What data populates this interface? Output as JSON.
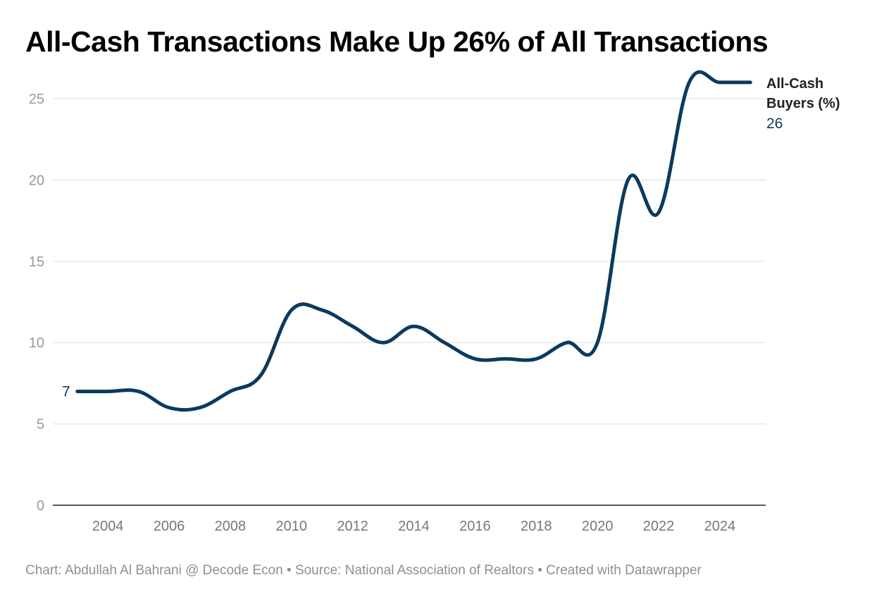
{
  "chart_data": {
    "type": "line",
    "title": "All-Cash Transactions Make Up 26% of All Transactions",
    "xlabel": "",
    "ylabel": "",
    "xlim": [
      2002.2,
      2025.5
    ],
    "ylim": [
      0,
      25
    ],
    "grid": true,
    "x_ticks": [
      2004,
      2006,
      2008,
      2010,
      2012,
      2014,
      2016,
      2018,
      2020,
      2022,
      2024
    ],
    "y_ticks": [
      0,
      5,
      10,
      15,
      20,
      25
    ],
    "color": "#0b3a5e",
    "series": [
      {
        "name_line1": "All-Cash",
        "name_line2": "Buyers (%)",
        "x": [
          2003,
          2004,
          2005,
          2006,
          2007,
          2008,
          2009,
          2010,
          2011,
          2012,
          2013,
          2014,
          2015,
          2016,
          2017,
          2018,
          2019,
          2020,
          2021,
          2022,
          2023,
          2024,
          2025
        ],
        "values": [
          7,
          7,
          7,
          6,
          6,
          7,
          8,
          12,
          12,
          11,
          10,
          11,
          10,
          9,
          9,
          9,
          10,
          10,
          20,
          18,
          26,
          26,
          26
        ]
      }
    ],
    "first_value_label": "7",
    "last_value_label": "26"
  },
  "footer": "Chart: Abdullah Al Bahrani @ Decode Econ • Source: National Association of Realtors • Created with Datawrapper"
}
